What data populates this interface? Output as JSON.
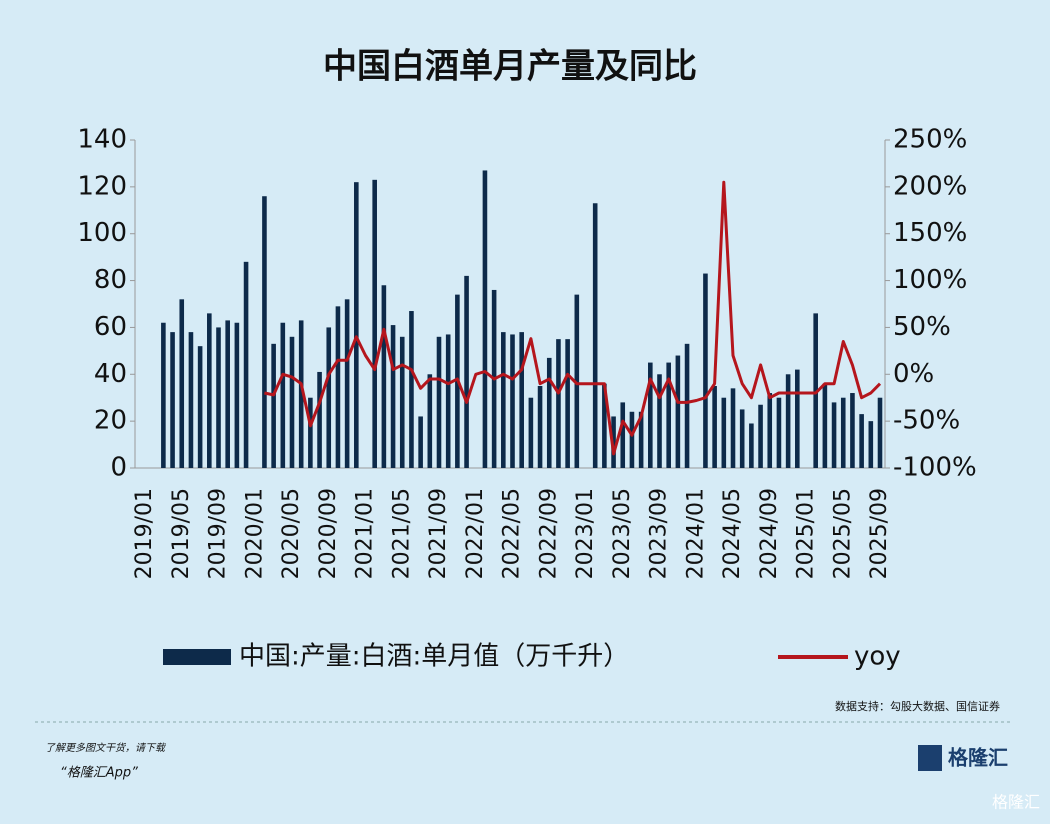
{
  "chart_data": {
    "type": "bar-line",
    "title": "中国白酒单月产量及同比",
    "categories": [
      "2019/01",
      null,
      null,
      null,
      "2019/05",
      null,
      null,
      null,
      "2019/09",
      null,
      null,
      null,
      "2020/01",
      null,
      null,
      null,
      "2020/05",
      null,
      null,
      null,
      "2020/09",
      null,
      null,
      null,
      "2021/01",
      null,
      null,
      null,
      "2021/05",
      null,
      null,
      null,
      "2021/09",
      null,
      null,
      null,
      "2022/01",
      null,
      null,
      null,
      "2022/05",
      null,
      null,
      null,
      "2022/09",
      null,
      null,
      null,
      "2023/01",
      null,
      null,
      null,
      "2023/05",
      null,
      null,
      null,
      "2023/09",
      null,
      null,
      null,
      "2024/01",
      null,
      null,
      null,
      "2024/05",
      null,
      null,
      null,
      "2024/09",
      null,
      null,
      null,
      "2025/01",
      null,
      null,
      null,
      "2025/05",
      null,
      null,
      null,
      "2025/09"
    ],
    "series": [
      {
        "name": "中国:产量:白酒:单月值（万千升）",
        "color": "#0d2a4a",
        "kind": "bar",
        "values": [
          null,
          null,
          62,
          58,
          72,
          58,
          52,
          66,
          60,
          63,
          62,
          88,
          null,
          116,
          53,
          62,
          56,
          63,
          30,
          41,
          60,
          69,
          72,
          122,
          null,
          123,
          78,
          61,
          56,
          67,
          22,
          40,
          56,
          57,
          74,
          82,
          null,
          127,
          76,
          58,
          57,
          58,
          30,
          35,
          47,
          55,
          55,
          74,
          null,
          113,
          36,
          22,
          28,
          24,
          24,
          45,
          40,
          45,
          48,
          53,
          null,
          83,
          35,
          30,
          34,
          25,
          19,
          27,
          32,
          30,
          40,
          42,
          null,
          66,
          36,
          28,
          30,
          32,
          23,
          20,
          30
        ]
      },
      {
        "name": "yoy",
        "color": "#b5161d",
        "kind": "line",
        "axis": "y2",
        "values": [
          null,
          null,
          null,
          null,
          null,
          null,
          null,
          null,
          null,
          null,
          null,
          null,
          null,
          -20,
          -22,
          0,
          -3,
          -10,
          -55,
          -30,
          0,
          15,
          15,
          40,
          20,
          5,
          48,
          5,
          10,
          5,
          -15,
          -5,
          -5,
          -10,
          -5,
          -30,
          0,
          3,
          -5,
          0,
          -5,
          5,
          38,
          -10,
          -5,
          -20,
          0,
          -10,
          -10,
          -10,
          -10,
          -85,
          -50,
          -65,
          -45,
          -5,
          -25,
          -5,
          -30,
          -30,
          -28,
          -25,
          -10,
          205,
          20,
          -10,
          -25,
          10,
          -25,
          -20,
          -20,
          -20,
          -20,
          -20,
          -10,
          -10,
          35,
          10,
          -25,
          -20,
          -10
        ]
      }
    ],
    "ylim": [
      0,
      140
    ],
    "yticks": [
      0,
      20,
      40,
      60,
      80,
      100,
      120,
      140
    ],
    "y2lim": [
      -100,
      250
    ],
    "y2ticks": [
      {
        "value": -100,
        "label": "-100%"
      },
      {
        "value": -50,
        "label": "-50%"
      },
      {
        "value": 0,
        "label": "0%"
      },
      {
        "value": 50,
        "label": "50%"
      },
      {
        "value": 100,
        "label": "100%"
      },
      {
        "value": 150,
        "label": "150%"
      },
      {
        "value": 200,
        "label": "200%"
      },
      {
        "value": 250,
        "label": "250%"
      }
    ]
  },
  "source": "数据支持：勾股大数据、国信证券",
  "footer": {
    "note": "了解更多图文干货，请下载",
    "app": "“格隆汇App”",
    "logo": "格隆汇",
    "watermark": "格隆汇"
  }
}
